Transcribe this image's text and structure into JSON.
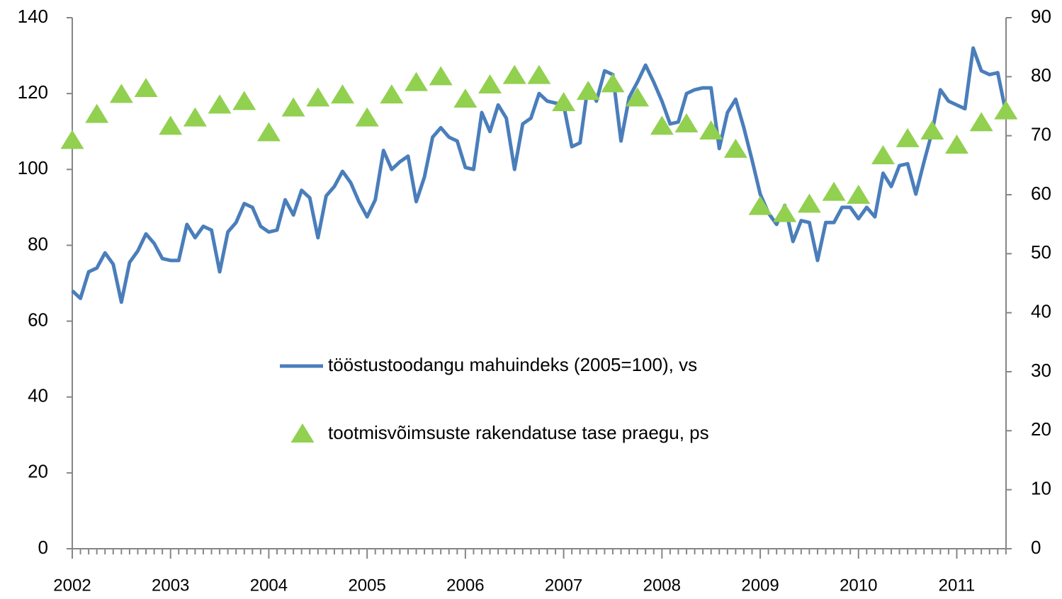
{
  "chart_data": {
    "type": "line",
    "categories": [
      "2002",
      null,
      null,
      null,
      null,
      null,
      null,
      null,
      null,
      null,
      null,
      null,
      "2003",
      null,
      null,
      null,
      null,
      null,
      null,
      null,
      null,
      null,
      null,
      null,
      "2004",
      null,
      null,
      null,
      null,
      null,
      null,
      null,
      null,
      null,
      null,
      null,
      "2005",
      null,
      null,
      null,
      null,
      null,
      null,
      null,
      null,
      null,
      null,
      null,
      "2006",
      null,
      null,
      null,
      null,
      null,
      null,
      null,
      null,
      null,
      null,
      null,
      "2007",
      null,
      null,
      null,
      null,
      null,
      null,
      null,
      null,
      null,
      null,
      null,
      "2008",
      null,
      null,
      null,
      null,
      null,
      null,
      null,
      null,
      null,
      null,
      null,
      "2009",
      null,
      null,
      null,
      null,
      null,
      null,
      null,
      null,
      null,
      null,
      null,
      "2010",
      null,
      null,
      null,
      null,
      null,
      null,
      null,
      null,
      null,
      null,
      null,
      "2011",
      null,
      null,
      null,
      null,
      null,
      null
    ],
    "series": [
      {
        "name": "tööstustoodangu mahuindeks (2005=100), vs",
        "color": "#4a7ebb",
        "marker": "none",
        "values": [
          68,
          66,
          73,
          74,
          78,
          75,
          65,
          75.5,
          78.5,
          83,
          80.5,
          76.5,
          76,
          76,
          85.5,
          82,
          85,
          84,
          73,
          83.5,
          86,
          91,
          90,
          85,
          83.5,
          84,
          92,
          88,
          94.5,
          92.5,
          82,
          93,
          95.5,
          99.5,
          96.5,
          91.5,
          87.5,
          92,
          105,
          100,
          102,
          103.5,
          91.5,
          98,
          108.5,
          111,
          108.5,
          107.5,
          100.5,
          100,
          115,
          110,
          117,
          113.5,
          100,
          112,
          113.5,
          120,
          118,
          117.5,
          117,
          106,
          107,
          122.5,
          118,
          126,
          125,
          107.5,
          119,
          123,
          127.5,
          123,
          118,
          112,
          112.5,
          120,
          121,
          121.5,
          121.5,
          105.5,
          115,
          118.5,
          111,
          102.5,
          93.5,
          88.5,
          85.5,
          90.5,
          81,
          86.5,
          86,
          76,
          86,
          86,
          90,
          90,
          87,
          90,
          87.5,
          99,
          95.5,
          101,
          101.5,
          93.5,
          102,
          110,
          121,
          118,
          117,
          116,
          132,
          126,
          125,
          125.5,
          115
        ]
      },
      {
        "name": "tootmisvõimsuste rakendatuse tase praegu, ps",
        "color": "#92d050",
        "marker": "triangle",
        "axis": "y2",
        "values": [
          69.2,
          null,
          null,
          73.6,
          null,
          null,
          77,
          null,
          null,
          78,
          null,
          null,
          71.6,
          null,
          null,
          73,
          null,
          null,
          75.2,
          null,
          null,
          75.8,
          null,
          null,
          70.5,
          null,
          null,
          74.7,
          null,
          null,
          76.4,
          null,
          null,
          76.9,
          null,
          null,
          73,
          null,
          null,
          76.9,
          null,
          null,
          79,
          null,
          null,
          80,
          null,
          null,
          76.2,
          null,
          null,
          78.6,
          null,
          null,
          80.2,
          null,
          null,
          80.2,
          null,
          null,
          75.6,
          null,
          null,
          77.5,
          null,
          null,
          78.8,
          null,
          null,
          76.4,
          null,
          null,
          71.6,
          null,
          null,
          72,
          null,
          null,
          70.8,
          null,
          null,
          67.7,
          null,
          null,
          58,
          null,
          null,
          56.8,
          null,
          null,
          58.4,
          null,
          null,
          60.4,
          null,
          null,
          59.9,
          null,
          null,
          66.6,
          null,
          null,
          69.5,
          null,
          null,
          70.8,
          null,
          null,
          68.4,
          null,
          null,
          72.2,
          null,
          null,
          74.2
        ]
      }
    ],
    "ylim": [
      0,
      140
    ],
    "yticks": [
      0,
      20,
      40,
      60,
      80,
      100,
      120,
      140
    ],
    "y2lim": [
      0,
      90
    ],
    "y2ticks": [
      0,
      10,
      20,
      30,
      40,
      50,
      60,
      70,
      80,
      90
    ],
    "grid": false
  }
}
